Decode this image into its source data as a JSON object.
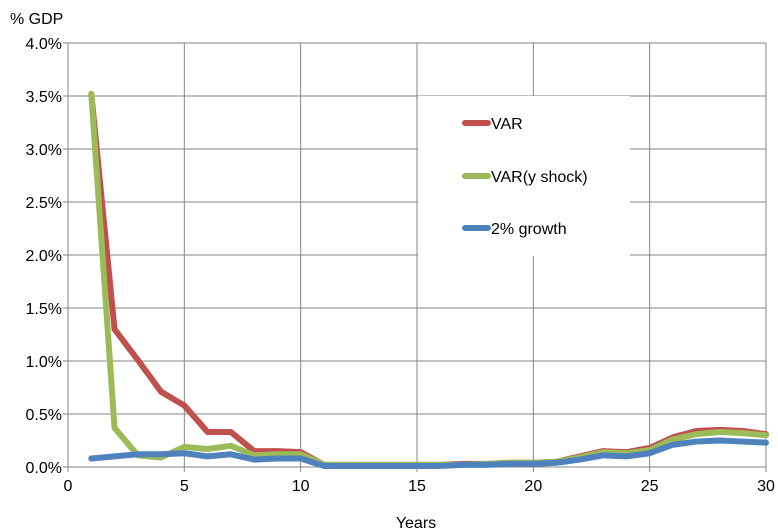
{
  "chart_data": {
    "type": "line",
    "title": "",
    "ylabel": "% GDP",
    "xlabel": "Years",
    "xlim": [
      0,
      30
    ],
    "ylim": [
      0,
      0.04
    ],
    "x_ticks": [
      0,
      5,
      10,
      15,
      20,
      25,
      30
    ],
    "x_tick_labels": [
      "0",
      "5",
      "10",
      "15",
      "20",
      "25",
      "30"
    ],
    "y_ticks": [
      0,
      0.005,
      0.01,
      0.015,
      0.02,
      0.025,
      0.03,
      0.035,
      0.04
    ],
    "y_tick_labels": [
      "0.0%",
      "0.5%",
      "1.0%",
      "1.5%",
      "2.0%",
      "2.5%",
      "3.0%",
      "3.5%",
      "4.0%"
    ],
    "grid": true,
    "legend_position": "inside-top-center-right",
    "x": [
      1,
      2,
      3,
      4,
      5,
      6,
      7,
      8,
      9,
      10,
      11,
      12,
      13,
      14,
      15,
      16,
      17,
      18,
      19,
      20,
      21,
      22,
      23,
      24,
      25,
      26,
      27,
      28,
      29,
      30
    ],
    "series": [
      {
        "name": "VAR",
        "color": "#c0504d",
        "values": [
          0.0352,
          0.013,
          0.0101,
          0.0071,
          0.0058,
          0.0033,
          0.0033,
          0.0015,
          0.0015,
          0.0014,
          0.0002,
          0.0002,
          0.0002,
          0.0002,
          0.0002,
          0.0002,
          0.0003,
          0.0003,
          0.0004,
          0.0004,
          0.0005,
          0.001,
          0.0015,
          0.0014,
          0.0018,
          0.0028,
          0.0034,
          0.0035,
          0.0034,
          0.0031
        ]
      },
      {
        "name": "VAR(y shock)",
        "color": "#9bbb59",
        "values": [
          0.0352,
          0.0037,
          0.0011,
          0.0009,
          0.0019,
          0.0017,
          0.002,
          0.0011,
          0.0012,
          0.0012,
          0.0002,
          0.0002,
          0.0002,
          0.0002,
          0.0002,
          0.0002,
          0.0002,
          0.0003,
          0.0004,
          0.0004,
          0.0005,
          0.0009,
          0.0014,
          0.0013,
          0.0016,
          0.0026,
          0.0031,
          0.0033,
          0.0032,
          0.003
        ]
      },
      {
        "name": "2% growth",
        "color": "#4f81bd",
        "values": [
          0.0008,
          0.001,
          0.0012,
          0.0012,
          0.0013,
          0.001,
          0.0012,
          0.0007,
          0.0008,
          0.0008,
          0.0001,
          0.0001,
          0.0001,
          0.0001,
          0.0001,
          0.0001,
          0.0002,
          0.0002,
          0.0003,
          0.0003,
          0.0004,
          0.0007,
          0.0011,
          0.001,
          0.0013,
          0.0021,
          0.0024,
          0.0025,
          0.0024,
          0.0023
        ]
      }
    ]
  }
}
